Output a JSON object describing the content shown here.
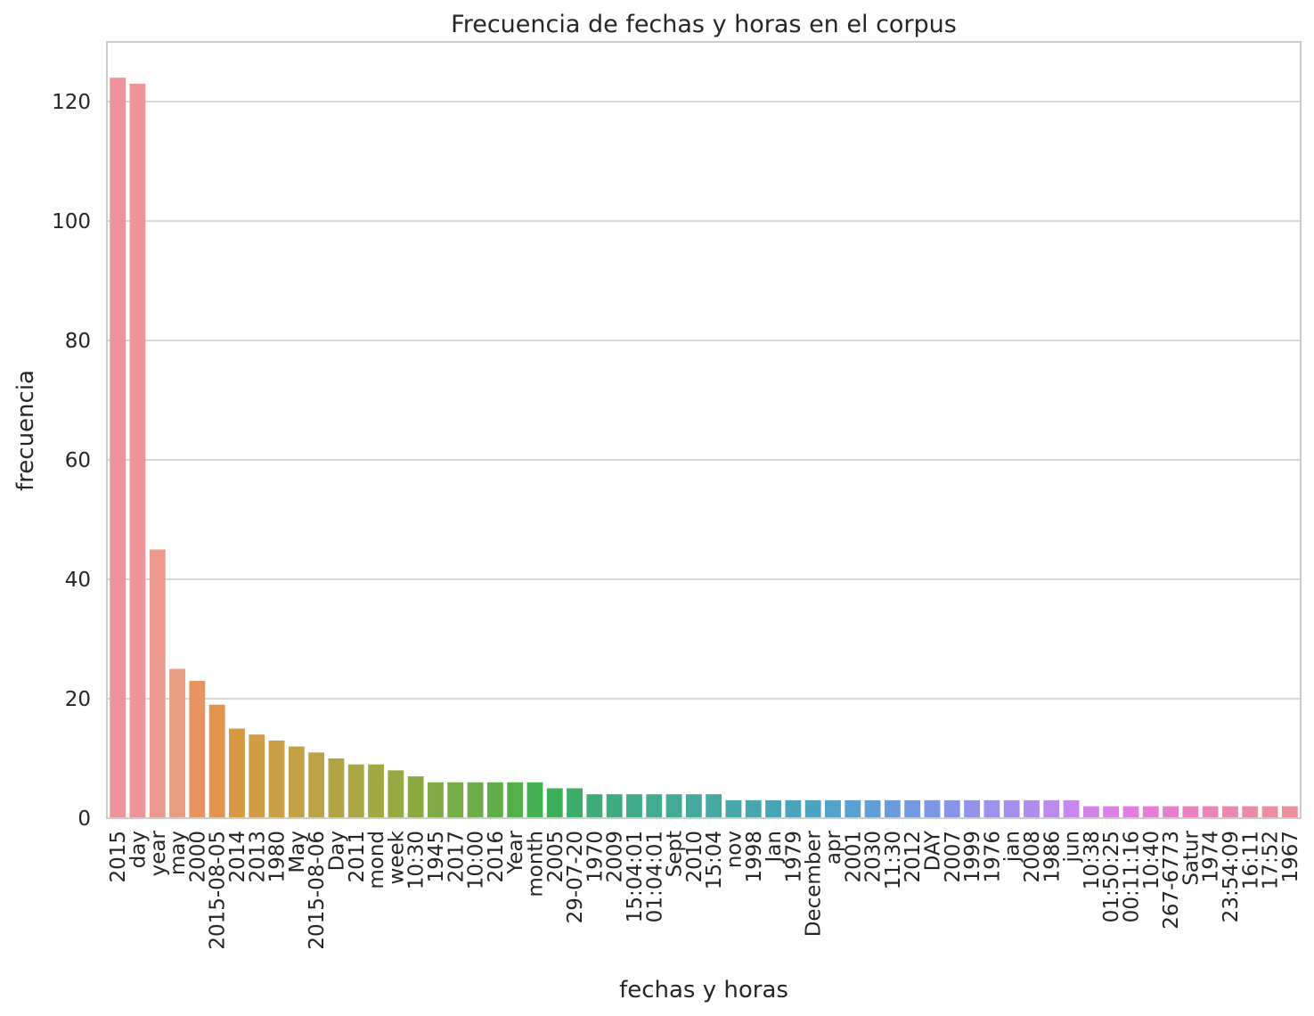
{
  "chart_data": {
    "type": "bar",
    "title": "Frecuencia de fechas y horas en el corpus",
    "xlabel": "fechas y horas",
    "ylabel": "frecuencia",
    "ylim": [
      0,
      130
    ],
    "yticks": [
      0,
      20,
      40,
      60,
      80,
      100,
      120
    ],
    "grid": true,
    "categories": [
      "2015",
      "day",
      "year",
      "may",
      "2000",
      "2015-08-05",
      "2014",
      "2013",
      "1980",
      "May",
      "2015-08-06",
      "Day",
      "2011",
      "mond",
      "week",
      "10:30",
      "1945",
      "2017",
      "10:00",
      "2016",
      "Year",
      "month",
      "2005",
      "29-07-20",
      "1970",
      "2009",
      "15:04:01",
      "01:04:01",
      "Sept",
      "2010",
      "15:04",
      "nov",
      "1998",
      "Jan",
      "1979",
      "December",
      "apr",
      "2001",
      "2030",
      "11:30",
      "2012",
      "DAY",
      "2007",
      "1999",
      "1976",
      "jan",
      "2008",
      "1986",
      "jun",
      "10:38",
      "01:50:25",
      "00:11:16",
      "10:40",
      "267-6773",
      "Satur",
      "1974",
      "23:54:09",
      "16:11",
      "17:52",
      "1967"
    ],
    "values": [
      124,
      123,
      45,
      25,
      23,
      19,
      15,
      14,
      13,
      12,
      11,
      10,
      9,
      9,
      8,
      7,
      6,
      6,
      6,
      6,
      6,
      6,
      5,
      5,
      4,
      4,
      4,
      4,
      4,
      4,
      4,
      3,
      3,
      3,
      3,
      3,
      3,
      3,
      3,
      3,
      3,
      3,
      3,
      3,
      3,
      3,
      3,
      3,
      3,
      2,
      2,
      2,
      2,
      2,
      2,
      2,
      2,
      2,
      2,
      2
    ],
    "colors": [
      "#ee929b",
      "#ed9598",
      "#eb9b8d",
      "#e99e84",
      "#e6955f",
      "#e2934e",
      "#d79a43",
      "#cf9d46",
      "#c99f47",
      "#c4a047",
      "#bca249",
      "#b2a445",
      "#aaa643",
      "#a1a844",
      "#97a942",
      "#8aaa41",
      "#7fab45",
      "#76ad46",
      "#6dad48",
      "#62ae4a",
      "#54af4b",
      "#45b052",
      "#3dae5a",
      "#3dae69",
      "#3eac79",
      "#3fab82",
      "#41aa8a",
      "#43aa90",
      "#44a996",
      "#45a99d",
      "#46a8a3",
      "#47a7a9",
      "#48a6af",
      "#49a5b5",
      "#4ba4bc",
      "#4da3c4",
      "#52a2ca",
      "#5aa0d0",
      "#629ed5",
      "#6a9cdb",
      "#749ae1",
      "#7e97e3",
      "#8895e6",
      "#9293e9",
      "#9c91eb",
      "#a68fec",
      "#b08ded",
      "#bb8aed",
      "#c787ec",
      "#d284e9",
      "#dc82e6",
      "#e27ee0",
      "#e67ed7",
      "#e87fcd",
      "#e981c2",
      "#ea85b9",
      "#eb88b1",
      "#ec8ba9",
      "#ed8ea3",
      "#ed909e"
    ]
  }
}
